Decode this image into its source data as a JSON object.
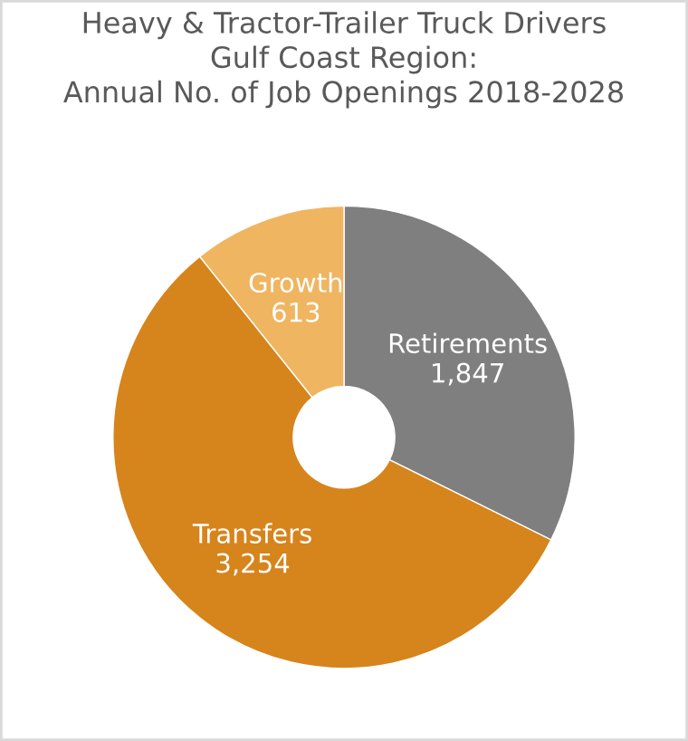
{
  "chart_data": {
    "type": "donut",
    "title": "Heavy & Tractor-Trailer Truck Drivers\nGulf Coast Region:\nAnnual No. of Job Openings 2018-2028",
    "categories": [
      "Retirements",
      "Transfers",
      "Growth"
    ],
    "values": [
      1847,
      3254,
      613
    ],
    "value_labels": [
      "1,847",
      "3,254",
      "613"
    ],
    "colors": [
      "#7f7f7f",
      "#d6841c",
      "#f0b561"
    ],
    "legend": false
  }
}
